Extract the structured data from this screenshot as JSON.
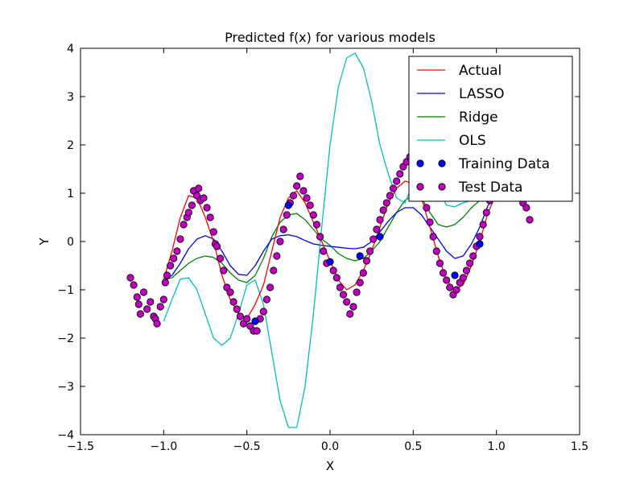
{
  "chart_data": {
    "type": "line",
    "title": "Predicted f(x) for various models",
    "xlabel": "X",
    "ylabel": "Y",
    "xlim": [
      -1.5,
      1.5
    ],
    "ylim": [
      -4,
      4
    ],
    "x_ticks": [
      "−1.5",
      "−1.0",
      "−0.5",
      "0.0",
      "0.5",
      "1.0",
      "1.5"
    ],
    "y_ticks": [
      "−4",
      "−3",
      "−2",
      "−1",
      "0",
      "1",
      "2",
      "3",
      "4"
    ],
    "grid": false,
    "legend_position": "top-right",
    "x": [
      -1.0,
      -0.95,
      -0.9,
      -0.85,
      -0.8,
      -0.75,
      -0.7,
      -0.65,
      -0.6,
      -0.55,
      -0.5,
      -0.45,
      -0.4,
      -0.35,
      -0.3,
      -0.25,
      -0.2,
      -0.15,
      -0.1,
      -0.05,
      0.0,
      0.05,
      0.1,
      0.15,
      0.2,
      0.25,
      0.3,
      0.35,
      0.4,
      0.45,
      0.5,
      0.55,
      0.6,
      0.65,
      0.7,
      0.75,
      0.8,
      0.85,
      0.9,
      0.95,
      1.0
    ],
    "series": [
      {
        "name": "Actual",
        "kind": "line",
        "color": "#ff0000",
        "values": [
          -0.8,
          -0.2,
          0.5,
          0.95,
          0.9,
          0.5,
          0.0,
          -0.7,
          -1.2,
          -1.5,
          -1.6,
          -1.3,
          -0.9,
          -0.2,
          0.5,
          0.9,
          1.05,
          0.8,
          0.4,
          0.0,
          -0.4,
          -0.8,
          -1.0,
          -0.9,
          -0.6,
          -0.2,
          0.3,
          0.8,
          1.1,
          1.25,
          1.2,
          0.9,
          0.3,
          -0.3,
          -0.8,
          -1.0,
          -0.9,
          -0.5,
          0.0,
          0.6,
          1.0
        ]
      },
      {
        "name": "LASSO",
        "kind": "line",
        "color": "#0000ff",
        "values": [
          -0.82,
          -0.7,
          -0.45,
          -0.15,
          0.05,
          0.12,
          0.05,
          -0.2,
          -0.5,
          -0.68,
          -0.7,
          -0.5,
          -0.2,
          0.05,
          0.12,
          0.14,
          0.1,
          0.02,
          -0.05,
          -0.08,
          -0.1,
          -0.12,
          -0.14,
          -0.15,
          -0.12,
          0.0,
          0.2,
          0.42,
          0.6,
          0.7,
          0.7,
          0.55,
          0.3,
          0.05,
          -0.2,
          -0.35,
          -0.3,
          -0.05,
          0.3,
          0.75,
          0.95
        ]
      },
      {
        "name": "Ridge",
        "kind": "line",
        "color": "#008000",
        "values": [
          -0.8,
          -0.75,
          -0.6,
          -0.45,
          -0.35,
          -0.3,
          -0.33,
          -0.45,
          -0.65,
          -0.8,
          -0.85,
          -0.7,
          -0.35,
          0.1,
          0.4,
          0.55,
          0.58,
          0.45,
          0.25,
          0.05,
          -0.08,
          -0.25,
          -0.35,
          -0.4,
          -0.35,
          -0.2,
          0.0,
          0.3,
          0.6,
          0.85,
          0.95,
          0.9,
          0.6,
          0.35,
          0.3,
          0.35,
          0.5,
          0.7,
          0.85,
          0.95,
          1.0
        ]
      },
      {
        "name": "OLS",
        "kind": "line",
        "color": "#00bfbf",
        "values": [
          -1.65,
          -1.2,
          -0.78,
          -0.75,
          -1.0,
          -1.5,
          -2.0,
          -2.15,
          -2.0,
          -1.5,
          -0.9,
          -0.8,
          -1.3,
          -2.3,
          -3.3,
          -3.85,
          -3.85,
          -3.0,
          -1.5,
          0.3,
          2.0,
          3.2,
          3.8,
          3.9,
          3.6,
          2.9,
          2.0,
          1.4,
          0.9,
          0.8,
          1.2,
          1.55,
          1.5,
          1.1,
          0.75,
          0.72,
          0.8,
          0.85,
          0.9,
          0.95,
          1.0
        ]
      },
      {
        "name": "Training Data",
        "kind": "points",
        "color": "#0000ff",
        "points": [
          [
            -0.45,
            -1.65
          ],
          [
            -0.25,
            0.75
          ],
          [
            0.0,
            -0.42
          ],
          [
            0.18,
            -0.3
          ],
          [
            0.3,
            0.1
          ],
          [
            0.55,
            0.9
          ],
          [
            0.75,
            -0.7
          ],
          [
            0.9,
            -0.05
          ]
        ]
      },
      {
        "name": "Test Data",
        "kind": "points",
        "color": "#bf00bf",
        "points": [
          [
            -1.2,
            -0.75
          ],
          [
            -1.18,
            -0.9
          ],
          [
            -1.16,
            -1.15
          ],
          [
            -1.15,
            -1.3
          ],
          [
            -1.14,
            -1.5
          ],
          [
            -1.12,
            -1.05
          ],
          [
            -1.1,
            -1.4
          ],
          [
            -1.08,
            -1.25
          ],
          [
            -1.06,
            -1.55
          ],
          [
            -1.05,
            -1.6
          ],
          [
            -1.04,
            -1.7
          ],
          [
            -1.02,
            -1.35
          ],
          [
            -1.0,
            -1.2
          ],
          [
            -0.99,
            -0.85
          ],
          [
            -0.98,
            -0.7
          ],
          [
            -0.96,
            -0.5
          ],
          [
            -0.94,
            -0.35
          ],
          [
            -0.92,
            -0.2
          ],
          [
            -0.9,
            0.05
          ],
          [
            -0.88,
            0.35
          ],
          [
            -0.86,
            0.5
          ],
          [
            -0.85,
            0.6
          ],
          [
            -0.83,
            0.75
          ],
          [
            -0.82,
            1.05
          ],
          [
            -0.8,
            0.95
          ],
          [
            -0.79,
            1.1
          ],
          [
            -0.78,
            0.85
          ],
          [
            -0.76,
            0.9
          ],
          [
            -0.74,
            0.7
          ],
          [
            -0.72,
            0.5
          ],
          [
            -0.7,
            0.2
          ],
          [
            -0.69,
            -0.05
          ],
          [
            -0.68,
            -0.1
          ],
          [
            -0.66,
            -0.35
          ],
          [
            -0.64,
            -0.6
          ],
          [
            -0.62,
            -0.95
          ],
          [
            -0.6,
            -1.05
          ],
          [
            -0.58,
            -1.25
          ],
          [
            -0.56,
            -1.4
          ],
          [
            -0.54,
            -1.55
          ],
          [
            -0.52,
            -1.7
          ],
          [
            -0.5,
            -1.6
          ],
          [
            -0.48,
            -1.75
          ],
          [
            -0.46,
            -1.85
          ],
          [
            -0.44,
            -1.85
          ],
          [
            -0.42,
            -1.6
          ],
          [
            -0.4,
            -1.45
          ],
          [
            -0.38,
            -1.2
          ],
          [
            -0.36,
            -0.95
          ],
          [
            -0.34,
            -0.6
          ],
          [
            -0.32,
            -0.3
          ],
          [
            -0.3,
            0.0
          ],
          [
            -0.28,
            0.25
          ],
          [
            -0.26,
            0.55
          ],
          [
            -0.24,
            0.8
          ],
          [
            -0.22,
            0.95
          ],
          [
            -0.2,
            1.15
          ],
          [
            -0.18,
            1.35
          ],
          [
            -0.16,
            1.05
          ],
          [
            -0.14,
            0.9
          ],
          [
            -0.12,
            0.75
          ],
          [
            -0.1,
            0.55
          ],
          [
            -0.08,
            0.35
          ],
          [
            -0.06,
            0.1
          ],
          [
            -0.04,
            -0.2
          ],
          [
            -0.02,
            -0.45
          ],
          [
            0.02,
            -0.6
          ],
          [
            0.04,
            -0.75
          ],
          [
            0.06,
            -0.95
          ],
          [
            0.08,
            -1.1
          ],
          [
            0.1,
            -1.25
          ],
          [
            0.12,
            -1.5
          ],
          [
            0.14,
            -1.35
          ],
          [
            0.16,
            -1.05
          ],
          [
            0.18,
            -0.85
          ],
          [
            0.2,
            -0.65
          ],
          [
            0.22,
            -0.4
          ],
          [
            0.24,
            -0.2
          ],
          [
            0.26,
            0.05
          ],
          [
            0.28,
            0.25
          ],
          [
            0.3,
            0.45
          ],
          [
            0.32,
            0.65
          ],
          [
            0.34,
            0.8
          ],
          [
            0.36,
            0.95
          ],
          [
            0.38,
            1.1
          ],
          [
            0.4,
            1.25
          ],
          [
            0.42,
            1.4
          ],
          [
            0.44,
            1.55
          ],
          [
            0.46,
            1.65
          ],
          [
            0.48,
            1.75
          ],
          [
            0.5,
            1.6
          ],
          [
            0.52,
            1.5
          ],
          [
            0.54,
            1.2
          ],
          [
            0.56,
            0.95
          ],
          [
            0.58,
            0.7
          ],
          [
            0.6,
            0.4
          ],
          [
            0.62,
            0.1
          ],
          [
            0.64,
            -0.2
          ],
          [
            0.66,
            -0.45
          ],
          [
            0.68,
            -0.65
          ],
          [
            0.7,
            -0.8
          ],
          [
            0.72,
            -0.95
          ],
          [
            0.74,
            -1.1
          ],
          [
            0.76,
            -1.0
          ],
          [
            0.78,
            -0.85
          ],
          [
            0.8,
            -0.75
          ],
          [
            0.82,
            -0.6
          ],
          [
            0.84,
            -0.45
          ],
          [
            0.86,
            -0.3
          ],
          [
            0.88,
            -0.1
          ],
          [
            0.9,
            0.1
          ],
          [
            0.92,
            0.35
          ],
          [
            0.94,
            0.6
          ],
          [
            0.96,
            0.85
          ],
          [
            0.98,
            1.0
          ],
          [
            1.0,
            1.2
          ],
          [
            1.02,
            1.4
          ],
          [
            1.04,
            1.55
          ],
          [
            1.06,
            1.4
          ],
          [
            1.08,
            1.25
          ],
          [
            1.1,
            1.1
          ],
          [
            1.12,
            1.0
          ],
          [
            1.14,
            0.9
          ],
          [
            1.16,
            0.8
          ],
          [
            1.18,
            0.7
          ],
          [
            1.2,
            0.45
          ]
        ]
      }
    ]
  }
}
